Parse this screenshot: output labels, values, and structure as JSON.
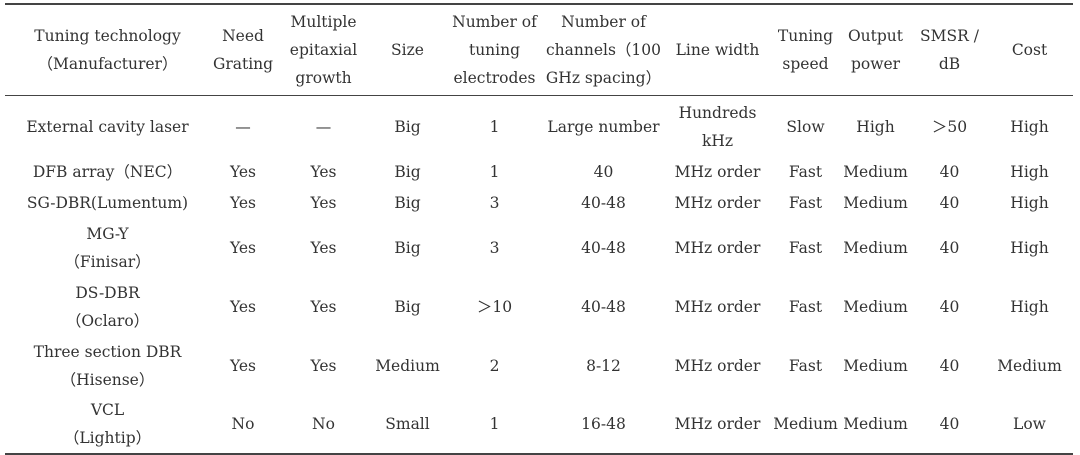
{
  "table": {
    "headers": [
      [
        "Tuning technology",
        "（Manufacturer）"
      ],
      [
        "Need",
        "Grating"
      ],
      [
        "Multiple",
        "epitaxial",
        "growth"
      ],
      [
        "Size"
      ],
      [
        "Number of",
        "tuning",
        "electrodes"
      ],
      [
        "Number of",
        "channels（100",
        "GHz spacing）"
      ],
      [
        "Line width"
      ],
      [
        "Tuning",
        "speed"
      ],
      [
        "Output",
        "power"
      ],
      [
        "SMSR /",
        "dB"
      ],
      [
        "Cost"
      ]
    ],
    "rows": [
      [
        [
          "External cavity laser"
        ],
        [
          "—"
        ],
        [
          "—"
        ],
        [
          "Big"
        ],
        [
          "1"
        ],
        [
          "Large number"
        ],
        [
          "Hundreds",
          "kHz"
        ],
        [
          "Slow"
        ],
        [
          "High"
        ],
        [
          "＞50"
        ],
        [
          "High"
        ]
      ],
      [
        [
          "DFB array（NEC）"
        ],
        [
          "Yes"
        ],
        [
          "Yes"
        ],
        [
          "Big"
        ],
        [
          "1"
        ],
        [
          "40"
        ],
        [
          "MHz order"
        ],
        [
          "Fast"
        ],
        [
          "Medium"
        ],
        [
          "40"
        ],
        [
          "High"
        ]
      ],
      [
        [
          "SG-DBR(Lumentum)"
        ],
        [
          "Yes"
        ],
        [
          "Yes"
        ],
        [
          "Big"
        ],
        [
          "3"
        ],
        [
          "40-48"
        ],
        [
          "MHz order"
        ],
        [
          "Fast"
        ],
        [
          "Medium"
        ],
        [
          "40"
        ],
        [
          "High"
        ]
      ],
      [
        [
          "MG-Y",
          "（Finisar）"
        ],
        [
          "Yes"
        ],
        [
          "Yes"
        ],
        [
          "Big"
        ],
        [
          "3"
        ],
        [
          "40-48"
        ],
        [
          "MHz order"
        ],
        [
          "Fast"
        ],
        [
          "Medium"
        ],
        [
          "40"
        ],
        [
          "High"
        ]
      ],
      [
        [
          "DS-DBR",
          "（Oclaro）"
        ],
        [
          "Yes"
        ],
        [
          "Yes"
        ],
        [
          "Big"
        ],
        [
          "＞10"
        ],
        [
          "40-48"
        ],
        [
          "MHz order"
        ],
        [
          "Fast"
        ],
        [
          "Medium"
        ],
        [
          "40"
        ],
        [
          "High"
        ]
      ],
      [
        [
          "Three section DBR",
          "（Hisense）"
        ],
        [
          "Yes"
        ],
        [
          "Yes"
        ],
        [
          "Medium"
        ],
        [
          "2"
        ],
        [
          "8-12"
        ],
        [
          "MHz order"
        ],
        [
          "Fast"
        ],
        [
          "Medium"
        ],
        [
          "40"
        ],
        [
          "Medium"
        ]
      ],
      [
        [
          "VCL",
          "（Lightip）"
        ],
        [
          "No"
        ],
        [
          "No"
        ],
        [
          "Small"
        ],
        [
          "1"
        ],
        [
          "16-48"
        ],
        [
          "MHz order"
        ],
        [
          "Medium"
        ],
        [
          "Medium"
        ],
        [
          "40"
        ],
        [
          "Low"
        ]
      ]
    ]
  }
}
